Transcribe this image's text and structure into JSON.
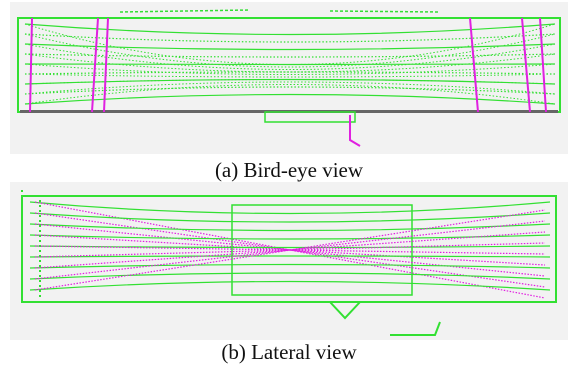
{
  "figure": {
    "panels": [
      {
        "caption": "(a) Bird-eye view"
      },
      {
        "caption": "(b) Lateral view"
      }
    ]
  }
}
